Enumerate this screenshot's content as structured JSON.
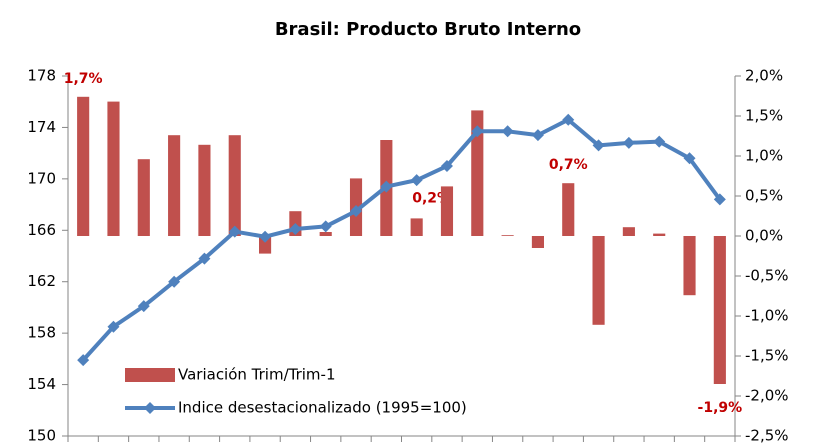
{
  "chart_data": {
    "type": "bar_line",
    "title": "Brasil: Producto Bruto Interno",
    "categories": [
      null,
      null,
      null,
      null,
      null,
      null,
      null,
      null,
      null,
      null,
      null,
      null,
      null,
      null,
      null,
      null,
      null,
      null,
      null,
      null,
      null,
      null
    ],
    "series": [
      {
        "name": "Variación Trim/Trim-1",
        "type": "bar",
        "axis": "y2",
        "color": "#c0504d",
        "values": [
          1.74,
          1.68,
          0.96,
          1.26,
          1.14,
          1.26,
          -0.22,
          0.31,
          0.05,
          0.72,
          1.2,
          0.22,
          0.62,
          1.57,
          0.01,
          -0.15,
          0.66,
          -1.11,
          0.11,
          0.03,
          -0.74,
          -1.85
        ],
        "value_labels": [
          "1,7%",
          null,
          null,
          null,
          null,
          null,
          null,
          null,
          null,
          null,
          null,
          "0,2%",
          null,
          null,
          null,
          null,
          "0,7%",
          null,
          null,
          null,
          null,
          "-1,9%"
        ]
      },
      {
        "name": "Indice desestacionalizado (1995=100)",
        "type": "line",
        "axis": "y",
        "color": "#4f81bd",
        "values": [
          155.9,
          158.5,
          160.1,
          162.0,
          163.8,
          165.9,
          165.5,
          166.1,
          166.3,
          167.5,
          169.4,
          169.9,
          171.0,
          173.7,
          173.7,
          173.4,
          174.6,
          172.6,
          172.8,
          172.9,
          171.6,
          168.4
        ]
      }
    ],
    "ylim": [
      150,
      178
    ],
    "yticks": [
      150,
      154,
      158,
      162,
      166,
      170,
      174,
      178
    ],
    "y2lim": [
      -2.5,
      2.0
    ],
    "y2ticks": [
      {
        "value": -2.5,
        "label": "-2,5%"
      },
      {
        "value": -2.0,
        "label": "-2,0%"
      },
      {
        "value": -1.5,
        "label": "-1,5%"
      },
      {
        "value": -1.0,
        "label": "-1,0%"
      },
      {
        "value": -0.5,
        "label": "-0,5%"
      },
      {
        "value": 0,
        "label": "0,0%"
      },
      {
        "value": 0.5,
        "label": "0,5%"
      },
      {
        "value": 1.0,
        "label": "1,0%"
      },
      {
        "value": 1.5,
        "label": "1,5%"
      },
      {
        "value": 2.0,
        "label": "2,0%"
      }
    ],
    "legend": "lower left"
  }
}
